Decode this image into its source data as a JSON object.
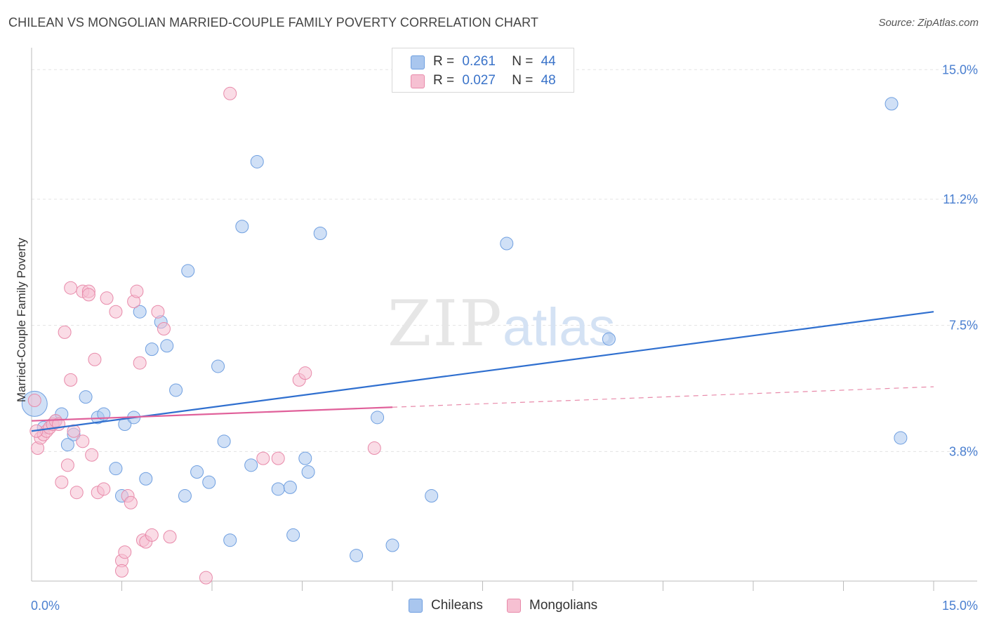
{
  "title": "CHILEAN VS MONGOLIAN MARRIED-COUPLE FAMILY POVERTY CORRELATION CHART",
  "source": "Source: ZipAtlas.com",
  "watermark": {
    "zip": "ZIP",
    "atlas": "atlas"
  },
  "legend": {
    "rows": [
      {
        "r_label": "R =",
        "r_value": "0.261",
        "n_label": "N =",
        "n_value": "44",
        "color": "#a9c6ee",
        "border": "#6f9fe0"
      },
      {
        "r_label": "R =",
        "r_value": "0.027",
        "n_label": "N =",
        "n_value": "48",
        "color": "#f6c0d2",
        "border": "#e88aaa"
      }
    ]
  },
  "bottom_legend": [
    {
      "label": "Chileans",
      "color": "#a9c6ee",
      "border": "#6f9fe0"
    },
    {
      "label": "Mongolians",
      "color": "#f6c0d2",
      "border": "#e88aaa"
    }
  ],
  "chart_data": {
    "type": "scatter",
    "title": "CHILEAN VS MONGOLIAN MARRIED-COUPLE FAMILY POVERTY CORRELATION CHART",
    "xlabel": "",
    "ylabel": "Married-Couple Family Poverty",
    "xlim": [
      0,
      15
    ],
    "ylim": [
      0,
      15.5
    ],
    "x_tick_labels": [
      "0.0%",
      "15.0%"
    ],
    "y_ticks": [
      {
        "value": 3.8,
        "label": "3.8%"
      },
      {
        "value": 7.5,
        "label": "7.5%"
      },
      {
        "value": 11.2,
        "label": "11.2%"
      },
      {
        "value": 15.0,
        "label": "15.0%"
      }
    ],
    "series": [
      {
        "name": "Chileans",
        "color": "#6f9fe0",
        "fill": "#a9c6ee",
        "trend": {
          "x": [
            0,
            15
          ],
          "y": [
            4.4,
            7.9
          ],
          "dashed_from": null
        },
        "points": [
          [
            0.05,
            5.2,
            18
          ],
          [
            0.2,
            4.5,
            9
          ],
          [
            0.4,
            4.7,
            9
          ],
          [
            0.35,
            4.6,
            9
          ],
          [
            0.5,
            4.9,
            9
          ],
          [
            0.7,
            4.3,
            9
          ],
          [
            0.6,
            4.0,
            9
          ],
          [
            0.9,
            5.4,
            9
          ],
          [
            1.1,
            4.8,
            9
          ],
          [
            1.2,
            4.9,
            9
          ],
          [
            1.4,
            3.3,
            9
          ],
          [
            1.5,
            2.5,
            9
          ],
          [
            1.55,
            4.6,
            9
          ],
          [
            1.7,
            4.8,
            9
          ],
          [
            1.8,
            7.9,
            9
          ],
          [
            1.9,
            3.0,
            9
          ],
          [
            2.0,
            6.8,
            9
          ],
          [
            2.15,
            7.6,
            9
          ],
          [
            2.25,
            6.9,
            9
          ],
          [
            2.4,
            5.6,
            9
          ],
          [
            2.55,
            2.5,
            9
          ],
          [
            2.6,
            9.1,
            9
          ],
          [
            2.75,
            3.2,
            9
          ],
          [
            2.95,
            2.9,
            9
          ],
          [
            3.1,
            6.3,
            9
          ],
          [
            3.2,
            4.1,
            9
          ],
          [
            3.3,
            1.2,
            9
          ],
          [
            3.5,
            10.4,
            9
          ],
          [
            3.75,
            12.3,
            9
          ],
          [
            3.65,
            3.4,
            9
          ],
          [
            4.1,
            2.7,
            9
          ],
          [
            4.3,
            2.75,
            9
          ],
          [
            4.35,
            1.35,
            9
          ],
          [
            4.55,
            3.6,
            9
          ],
          [
            4.6,
            3.2,
            9
          ],
          [
            4.8,
            10.2,
            9
          ],
          [
            5.4,
            0.75,
            9
          ],
          [
            5.75,
            4.8,
            9
          ],
          [
            6.0,
            1.05,
            9
          ],
          [
            6.65,
            2.5,
            9
          ],
          [
            7.9,
            9.9,
            9
          ],
          [
            9.6,
            7.1,
            9
          ],
          [
            14.3,
            14.0,
            9
          ],
          [
            14.45,
            4.2,
            9
          ]
        ]
      },
      {
        "name": "Mongolians",
        "color": "#e88aaa",
        "fill": "#f6c0d2",
        "trend": {
          "x": [
            0,
            6.0,
            15
          ],
          "y": [
            4.7,
            5.1,
            5.7
          ],
          "dashed_from": 6.0
        },
        "points": [
          [
            0.05,
            5.3,
            9
          ],
          [
            0.1,
            3.9,
            9
          ],
          [
            0.15,
            4.2,
            9
          ],
          [
            0.2,
            4.3,
            9
          ],
          [
            0.25,
            4.4,
            9
          ],
          [
            0.3,
            4.5,
            9
          ],
          [
            0.35,
            4.6,
            9
          ],
          [
            0.4,
            4.7,
            9
          ],
          [
            0.45,
            4.6,
            9
          ],
          [
            0.5,
            2.9,
            9
          ],
          [
            0.55,
            7.3,
            9
          ],
          [
            0.6,
            3.4,
            9
          ],
          [
            0.65,
            8.6,
            9
          ],
          [
            0.65,
            5.9,
            9
          ],
          [
            0.75,
            2.6,
            9
          ],
          [
            0.85,
            8.5,
            9
          ],
          [
            0.85,
            4.1,
            9
          ],
          [
            0.7,
            4.4,
            9
          ],
          [
            0.95,
            8.5,
            9
          ],
          [
            0.95,
            8.4,
            9
          ],
          [
            1.05,
            6.5,
            9
          ],
          [
            1.0,
            3.7,
            9
          ],
          [
            1.1,
            2.6,
            9
          ],
          [
            1.2,
            2.7,
            9
          ],
          [
            1.25,
            8.3,
            9
          ],
          [
            1.4,
            7.9,
            9
          ],
          [
            1.5,
            0.6,
            9
          ],
          [
            1.5,
            0.3,
            9
          ],
          [
            1.55,
            0.85,
            9
          ],
          [
            1.6,
            2.5,
            9
          ],
          [
            1.65,
            2.3,
            9
          ],
          [
            1.7,
            8.2,
            9
          ],
          [
            1.75,
            8.5,
            9
          ],
          [
            1.8,
            6.4,
            9
          ],
          [
            1.85,
            1.2,
            9
          ],
          [
            1.9,
            1.15,
            9
          ],
          [
            2.0,
            1.35,
            9
          ],
          [
            2.1,
            7.9,
            9
          ],
          [
            2.2,
            7.4,
            9
          ],
          [
            2.3,
            1.3,
            9
          ],
          [
            2.9,
            0.1,
            9
          ],
          [
            3.3,
            14.3,
            9
          ],
          [
            3.85,
            3.6,
            9
          ],
          [
            4.1,
            3.6,
            9
          ],
          [
            4.45,
            5.9,
            9
          ],
          [
            4.55,
            6.1,
            9
          ],
          [
            5.7,
            3.9,
            9
          ],
          [
            0.08,
            4.4,
            9
          ]
        ]
      }
    ]
  }
}
